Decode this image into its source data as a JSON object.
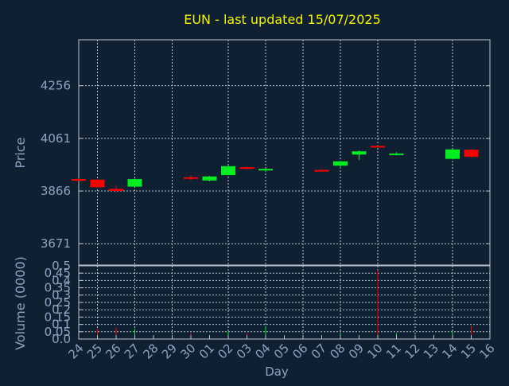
{
  "chart_data": {
    "type": "candlestick",
    "title": "EUN - last updated 15/07/2025",
    "ylabel_price": "Price",
    "ylabel_volume": "Volume (0000)",
    "xlabel": "Day",
    "price_ylim": [
      3592,
      4426
    ],
    "price_ticks": [
      "4256",
      "4061",
      "3866",
      "3671"
    ],
    "price_tick_values": [
      4256,
      4061,
      3866,
      3671
    ],
    "volume_ylim": [
      0,
      0.5
    ],
    "volume_ticks": [
      "0.5",
      "0.45",
      "0.4",
      "0.35",
      "0.3",
      "0.25",
      "0.2",
      "0.15",
      "0.1",
      "0.05",
      "0.0"
    ],
    "volume_tick_values": [
      0.5,
      0.45,
      0.4,
      0.35,
      0.3,
      0.25,
      0.2,
      0.15,
      0.1,
      0.05,
      0.0
    ],
    "x_ticks": [
      "24",
      "25",
      "26",
      "27",
      "28",
      "29",
      "30",
      "01",
      "02",
      "03",
      "04",
      "05",
      "06",
      "07",
      "08",
      "09",
      "10",
      "11",
      "12",
      "13",
      "14",
      "15",
      "16"
    ],
    "x_grid_ticks": [
      "25",
      "27",
      "29",
      "02",
      "04",
      "06",
      "08",
      "10",
      "12",
      "14"
    ],
    "candles": [
      {
        "x": "24",
        "open": 3910,
        "close": 3905,
        "high": 3912,
        "low": 3903
      },
      {
        "x": "25",
        "open": 3908,
        "close": 3880,
        "high": 3910,
        "low": 3878
      },
      {
        "x": "26",
        "open": 3874,
        "close": 3866,
        "high": 3886,
        "low": 3862
      },
      {
        "x": "27",
        "open": 3882,
        "close": 3910,
        "high": 3912,
        "low": 3880
      },
      {
        "x": "30",
        "open": 3917,
        "close": 3912,
        "high": 3924,
        "low": 3905
      },
      {
        "x": "01",
        "open": 3905,
        "close": 3920,
        "high": 3922,
        "low": 3902
      },
      {
        "x": "02",
        "open": 3925,
        "close": 3958,
        "high": 3960,
        "low": 3924
      },
      {
        "x": "03",
        "open": 3954,
        "close": 3951,
        "high": 3956,
        "low": 3947
      },
      {
        "x": "04",
        "open": 3944,
        "close": 3948,
        "high": 3950,
        "low": 3936
      },
      {
        "x": "07",
        "open": 3944,
        "close": 3942,
        "high": 3947,
        "low": 3938
      },
      {
        "x": "08",
        "open": 3960,
        "close": 3976,
        "high": 3978,
        "low": 3950
      },
      {
        "x": "09",
        "open": 4001,
        "close": 4013,
        "high": 4016,
        "low": 3981
      },
      {
        "x": "10",
        "open": 4033,
        "close": 4030,
        "high": 4036,
        "low": 4028
      },
      {
        "x": "11",
        "open": 4002,
        "close": 4005,
        "high": 4010,
        "low": 3998
      },
      {
        "x": "14",
        "open": 3985,
        "close": 4020,
        "high": 4022,
        "low": 3983
      },
      {
        "x": "15",
        "open": 4019,
        "close": 3993,
        "high": 4021,
        "low": 3991
      }
    ],
    "volumes": [
      {
        "x": "24",
        "value": 0.0,
        "dir": "down"
      },
      {
        "x": "25",
        "value": 0.07,
        "dir": "down"
      },
      {
        "x": "26",
        "value": 0.08,
        "dir": "down"
      },
      {
        "x": "27",
        "value": 0.07,
        "dir": "up"
      },
      {
        "x": "30",
        "value": 0.04,
        "dir": "down"
      },
      {
        "x": "01",
        "value": 0.01,
        "dir": "up"
      },
      {
        "x": "02",
        "value": 0.05,
        "dir": "up"
      },
      {
        "x": "03",
        "value": 0.04,
        "dir": "down"
      },
      {
        "x": "04",
        "value": 0.09,
        "dir": "up"
      },
      {
        "x": "07",
        "value": 0.01,
        "dir": "down"
      },
      {
        "x": "08",
        "value": 0.04,
        "dir": "up"
      },
      {
        "x": "09",
        "value": 0.02,
        "dir": "up"
      },
      {
        "x": "10",
        "value": 0.47,
        "dir": "down"
      },
      {
        "x": "11",
        "value": 0.04,
        "dir": "up"
      },
      {
        "x": "14",
        "value": 0.05,
        "dir": "up"
      },
      {
        "x": "15",
        "value": 0.09,
        "dir": "down"
      }
    ],
    "colors": {
      "background": "#0f2033",
      "plot_border": "#b8c3d0",
      "grid": "#b8c3d0",
      "title": "#f5f500",
      "axis_text": "#8fa3c2",
      "up": "#00ee22",
      "down": "#ff0000"
    }
  }
}
